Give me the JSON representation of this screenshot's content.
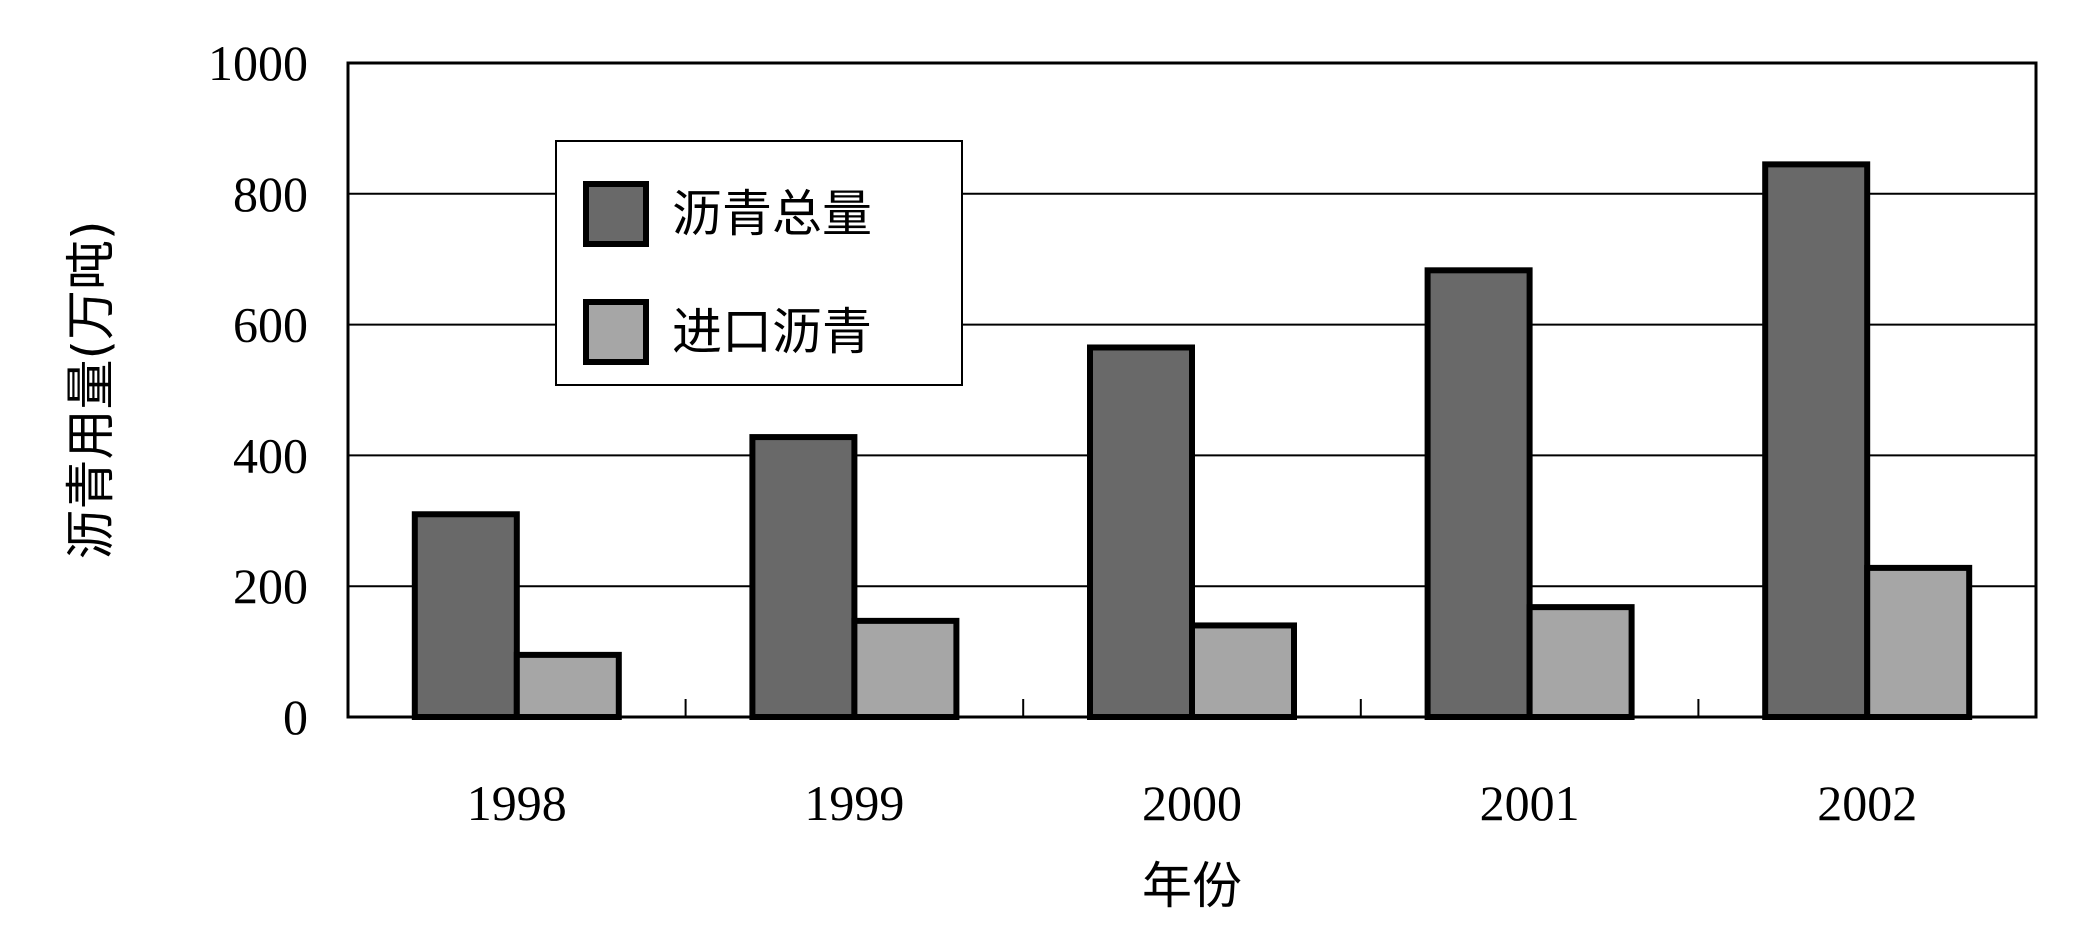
{
  "chart_data": {
    "type": "bar",
    "title": "",
    "xlabel": "年份",
    "ylabel": "沥青用量(万吨)",
    "categories": [
      "1998",
      "1999",
      "2000",
      "2001",
      "2002"
    ],
    "ylim": [
      0,
      1000
    ],
    "yticks": [
      "0",
      "200",
      "400",
      "600",
      "800",
      "1000"
    ],
    "grid": true,
    "legend_position": "top-left",
    "series": [
      {
        "name": "沥青总量",
        "values": [
          310,
          428,
          565,
          683,
          845
        ],
        "color": "#696969"
      },
      {
        "name": "进口沥青",
        "values": [
          95,
          147,
          140,
          168,
          228
        ],
        "color": "#a6a6a6"
      }
    ]
  }
}
